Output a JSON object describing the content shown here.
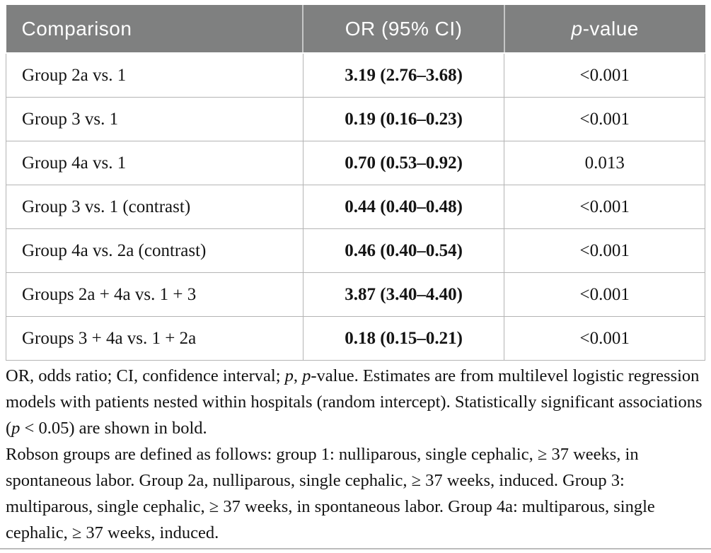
{
  "colors": {
    "header_bg": "#7f8080",
    "header_text": "#ffffff",
    "grid_line": "#b4b4b4",
    "body_text": "#141414"
  },
  "table": {
    "header": {
      "comparison": "Comparison",
      "or_ci": "OR (95% CI)",
      "p_italic": "p",
      "p_rest": "-value"
    },
    "rows": [
      {
        "comparison": "Group 2a vs. 1",
        "or_ci": "3.19 (2.76–3.68)",
        "p": "<0.001"
      },
      {
        "comparison": "Group 3 vs. 1",
        "or_ci": "0.19 (0.16–0.23)",
        "p": "<0.001"
      },
      {
        "comparison": "Group 4a vs. 1",
        "or_ci": "0.70 (0.53–0.92)",
        "p": "0.013"
      },
      {
        "comparison": "Group 3 vs. 1 (contrast)",
        "or_ci": "0.44 (0.40–0.48)",
        "p": "<0.001"
      },
      {
        "comparison": "Group 4a vs. 2a (contrast)",
        "or_ci": "0.46 (0.40–0.54)",
        "p": "<0.001"
      },
      {
        "comparison": "Groups 2a + 4a vs. 1 + 3",
        "or_ci": "3.87 (3.40–4.40)",
        "p": "<0.001"
      },
      {
        "comparison": "Groups 3 + 4a vs. 1 + 2a",
        "or_ci": "0.18 (0.15–0.21)",
        "p": "<0.001"
      }
    ]
  },
  "footnotes": {
    "f1": {
      "s1": "OR, odds ratio; CI, confidence interval; ",
      "i1": "p",
      "s2": ", ",
      "i2": "p",
      "s3": "-value. Estimates are from multilevel logistic regression models with patients nested within hospitals (random intercept). Statistically significant associations (",
      "i3": "p",
      "s4": " < 0.05) are shown in bold."
    },
    "f2": "Robson groups are defined as follows: group 1: nulliparous, single cephalic, ≥ 37 weeks, in spontaneous labor. Group 2a, nulliparous, single cephalic, ≥ 37 weeks, induced. Group 3: multiparous, single cephalic, ≥ 37 weeks, in spontaneous labor. Group 4a: multiparous, single cephalic, ≥ 37 weeks, induced."
  },
  "chart_data": {
    "type": "table",
    "title": "",
    "columns": [
      "Comparison",
      "OR (95% CI)",
      "p-value"
    ],
    "rows": [
      [
        "Group 2a vs. 1",
        "3.19 (2.76–3.68)",
        "<0.001"
      ],
      [
        "Group 3 vs. 1",
        "0.19 (0.16–0.23)",
        "<0.001"
      ],
      [
        "Group 4a vs. 1",
        "0.70 (0.53–0.92)",
        "0.013"
      ],
      [
        "Group 3 vs. 1 (contrast)",
        "0.44 (0.40–0.48)",
        "<0.001"
      ],
      [
        "Group 4a vs. 2a (contrast)",
        "0.46 (0.40–0.54)",
        "<0.001"
      ],
      [
        "Groups 2a + 4a vs. 1 + 3",
        "3.87 (3.40–4.40)",
        "<0.001"
      ],
      [
        "Groups 3 + 4a vs. 1 + 2a",
        "0.18 (0.15–0.21)",
        "<0.001"
      ]
    ],
    "odds_ratios": [
      3.19,
      0.19,
      0.7,
      0.44,
      0.46,
      3.87,
      0.18
    ],
    "ci_low": [
      2.76,
      0.16,
      0.53,
      0.4,
      0.4,
      3.4,
      0.15
    ],
    "ci_high": [
      3.68,
      0.23,
      0.92,
      0.48,
      0.54,
      4.4,
      0.21
    ],
    "p_values": [
      "<0.001",
      "<0.001",
      "0.013",
      "<0.001",
      "<0.001",
      "<0.001",
      "<0.001"
    ]
  }
}
